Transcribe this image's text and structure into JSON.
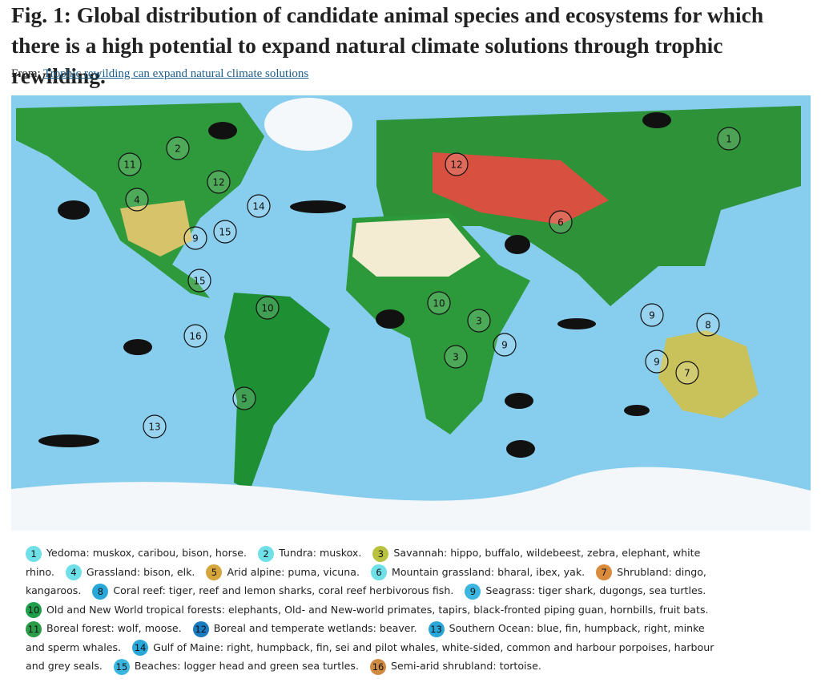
{
  "header": {
    "title": "Fig. 1: Global distribution of candidate animal species and ecosystems for which there is a high potential to expand natural climate solutions through trophic rewilding.",
    "from_label": "From:",
    "link": "Trophic rewilding can expand natural climate solutions"
  },
  "map": {
    "markers": [
      "1",
      "2",
      "11",
      "4",
      "12",
      "14",
      "15",
      "9",
      "15",
      "10",
      "16",
      "5",
      "13",
      "12",
      "6",
      "10",
      "3",
      "3",
      "9",
      "8",
      "9",
      "9",
      "7"
    ]
  },
  "legend": {
    "items": [
      {
        "number": "1",
        "text": "Yedoma: muskox, caribou, bison, horse.",
        "color": "#6fe0e8"
      },
      {
        "number": "2",
        "text": "Tundra: muskox.",
        "color": "#6fe0e8"
      },
      {
        "number": "3",
        "text": "Savannah: hippo, buffalo, wildebeest, zebra, elephant, white rhino.",
        "color": "#b8c23e"
      },
      {
        "number": "4",
        "text": "Grassland: bison, elk.",
        "color": "#6fe0e8"
      },
      {
        "number": "5",
        "text": "Arid alpine: puma, vicuna.",
        "color": "#d6a63c"
      },
      {
        "number": "6",
        "text": "Mountain grassland: bharal, ibex, yak.",
        "color": "#6fe0e8"
      },
      {
        "number": "7",
        "text": "Shrubland: dingo, kangaroos.",
        "color": "#d98a3d"
      },
      {
        "number": "8",
        "text": "Coral reef: tiger, reef and lemon sharks, coral reef herbivorous fish.",
        "color": "#2aa7d9"
      },
      {
        "number": "9",
        "text": "Seagrass: tiger shark, dugongs, sea turtles.",
        "color": "#3ab6e0"
      },
      {
        "number": "10",
        "text": "Old and New World tropical forests: elephants, Old- and New-world primates, tapirs, black-fronted piping guan, hornbills, fruit bats.",
        "color": "#1f9e4a"
      },
      {
        "number": "11",
        "text": "Boreal forest: wolf, moose.",
        "color": "#2a9c48"
      },
      {
        "number": "12",
        "text": "Boreal and temperate wetlands: beaver.",
        "color": "#1a7bbf"
      },
      {
        "number": "13",
        "text": "Southern Ocean: blue, fin, humpback, right, minke and sperm whales.",
        "color": "#2aa7d9"
      },
      {
        "number": "14",
        "text": "Gulf of Maine: right, humpback, fin, sei and pilot whales, white-sided, common and harbour porpoises, harbour and grey seals.",
        "color": "#2aa7d9"
      },
      {
        "number": "15",
        "text": "Beaches: logger head and green sea turtles.",
        "color": "#3ab6e0"
      },
      {
        "number": "16",
        "text": "Semi-arid shrubland: tortoise.",
        "color": "#d08a42"
      }
    ]
  }
}
